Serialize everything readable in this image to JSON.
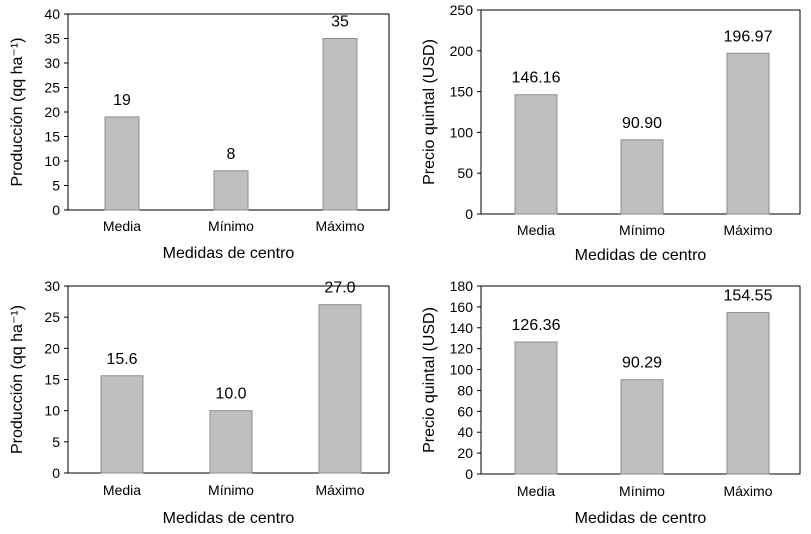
{
  "colors": {
    "bar": "#bfbfbf",
    "bar_stroke": "#8c8c8c",
    "frame": "#000000"
  },
  "chart_data": [
    {
      "type": "bar",
      "categories": [
        "Media",
        "Mínimo",
        "Máximo"
      ],
      "values": [
        19,
        8,
        35
      ],
      "labels": [
        "19",
        "8",
        "35"
      ],
      "xlabel": "Medidas de centro",
      "ylabel": "Producción (qq ha⁻¹)",
      "ylim": [
        0,
        40
      ],
      "yticks": [
        0,
        5,
        10,
        15,
        20,
        25,
        30,
        35,
        40
      ],
      "grid": false
    },
    {
      "type": "bar",
      "categories": [
        "Media",
        "Mínimo",
        "Máximo"
      ],
      "values": [
        146.16,
        90.9,
        196.97
      ],
      "labels": [
        "146.16",
        "90.90",
        "196.97"
      ],
      "xlabel": "Medidas de centro",
      "ylabel": "Precio quintal (USD)",
      "ylim": [
        0,
        250
      ],
      "yticks": [
        0,
        50,
        100,
        150,
        200,
        250
      ],
      "grid": false
    },
    {
      "type": "bar",
      "categories": [
        "Media",
        "Mínimo",
        "Máximo"
      ],
      "values": [
        15.6,
        10.0,
        27.0
      ],
      "labels": [
        "15.6",
        "10.0",
        "27.0"
      ],
      "xlabel": "Medidas de centro",
      "ylabel": "Producción (qq ha⁻¹)",
      "ylim": [
        0,
        30
      ],
      "yticks": [
        0,
        5,
        10,
        15,
        20,
        25,
        30
      ],
      "grid": false
    },
    {
      "type": "bar",
      "categories": [
        "Media",
        "Mínimo",
        "Máximo"
      ],
      "values": [
        126.36,
        90.29,
        154.55
      ],
      "labels": [
        "126.36",
        "90.29",
        "154.55"
      ],
      "xlabel": "Medidas de centro",
      "ylabel": "Precio quintal (USD)",
      "ylim": [
        0,
        180
      ],
      "yticks": [
        0,
        20,
        40,
        60,
        80,
        100,
        120,
        140,
        160,
        180
      ],
      "grid": false
    }
  ]
}
